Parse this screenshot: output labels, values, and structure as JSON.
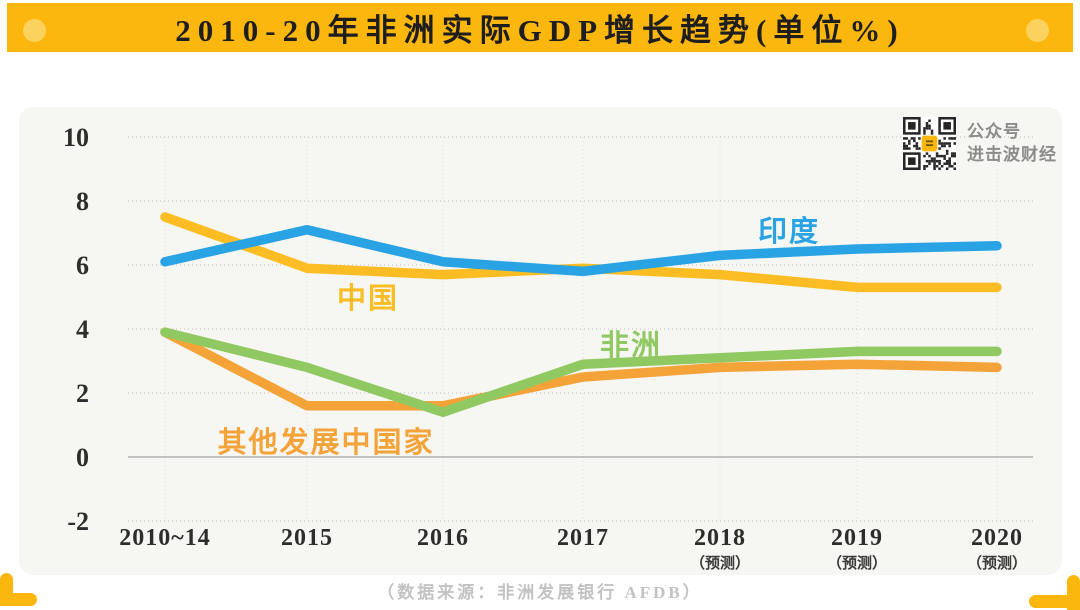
{
  "title": "2010-20年非洲实际GDP增长趋势(单位%)",
  "qr": {
    "line1": "公众号",
    "line2": "进击波财经"
  },
  "source": "（数据来源：非洲发展银行  AFDB）",
  "colors": {
    "brand_yellow": "#FBB70D",
    "title_dot": "#FCD25E",
    "card_background": "#F6F6F3",
    "title_text": "#1E1E1E",
    "axis_text": "#2D2D2D",
    "source_text": "#C2C2C2",
    "qr_caption_text": "#8C8C8C"
  },
  "chart_data": {
    "type": "line",
    "title": "2010-20年非洲实际GDP增长趋势(单位%)",
    "ylabel": "",
    "xlabel": "",
    "ylim": [
      -2,
      10
    ],
    "y_ticks": [
      10,
      8,
      6,
      4,
      2,
      0,
      -2
    ],
    "grid": "dotted gray horizontal and vertical, solid line at 0",
    "legend": "inline colored labels next to lines",
    "x_ticks": [
      {
        "label": "2010~14",
        "sub": ""
      },
      {
        "label": "2015",
        "sub": ""
      },
      {
        "label": "2016",
        "sub": ""
      },
      {
        "label": "2017",
        "sub": ""
      },
      {
        "label": "2018",
        "sub": "（预测）"
      },
      {
        "label": "2019",
        "sub": "（预测）"
      },
      {
        "label": "2020",
        "sub": "（预测）"
      }
    ],
    "series": [
      {
        "key": "others",
        "name": "其他发展中国家",
        "color": "#F4A339",
        "values": [
          3.9,
          1.6,
          1.6,
          2.5,
          2.8,
          2.9,
          2.8
        ]
      },
      {
        "key": "africa",
        "name": "非洲",
        "color": "#90C862",
        "values": [
          3.9,
          2.8,
          1.4,
          2.9,
          3.1,
          3.3,
          3.3
        ]
      },
      {
        "key": "china",
        "name": "中国",
        "color": "#FBBD23",
        "values": [
          7.5,
          5.9,
          5.7,
          5.9,
          5.7,
          5.3,
          5.3
        ]
      },
      {
        "key": "india",
        "name": "印度",
        "color": "#29A3E4",
        "values": [
          6.1,
          7.1,
          6.1,
          5.8,
          6.3,
          6.5,
          6.6
        ]
      }
    ]
  }
}
